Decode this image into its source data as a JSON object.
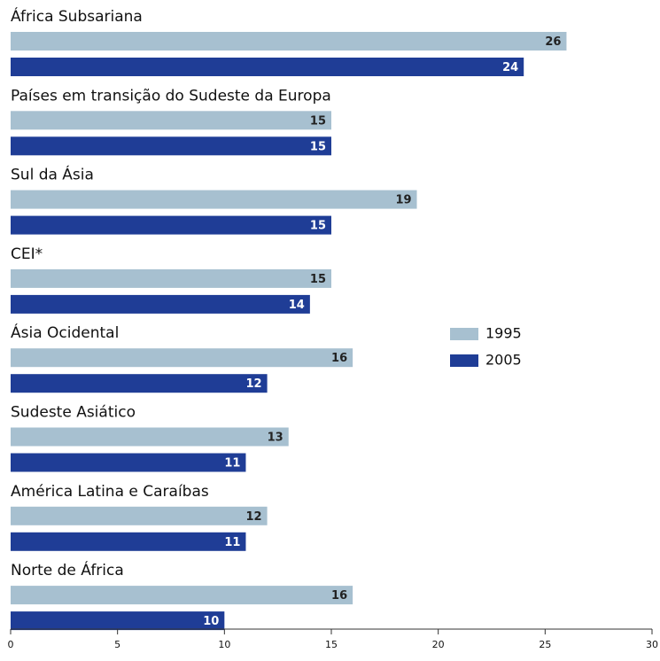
{
  "chart_data": {
    "type": "bar",
    "orientation": "horizontal",
    "categories": [
      "África Subsariana",
      "Países em transição do Sudeste da Europa",
      "Sul da Ásia",
      "CEI*",
      "Ásia Ocidental",
      "Sudeste Asiático",
      "América Latina e Caraíbas",
      "Norte de África"
    ],
    "series": [
      {
        "name": "1995",
        "color": "#a7c0d0",
        "values": [
          26,
          15,
          19,
          15,
          16,
          13,
          12,
          16
        ]
      },
      {
        "name": "2005",
        "color": "#1f3d96",
        "values": [
          24,
          15,
          15,
          14,
          12,
          11,
          11,
          10
        ]
      }
    ],
    "xlim": [
      0,
      30
    ],
    "xticks": [
      0,
      5,
      10,
      15,
      20,
      25,
      30
    ],
    "legend": "right"
  }
}
